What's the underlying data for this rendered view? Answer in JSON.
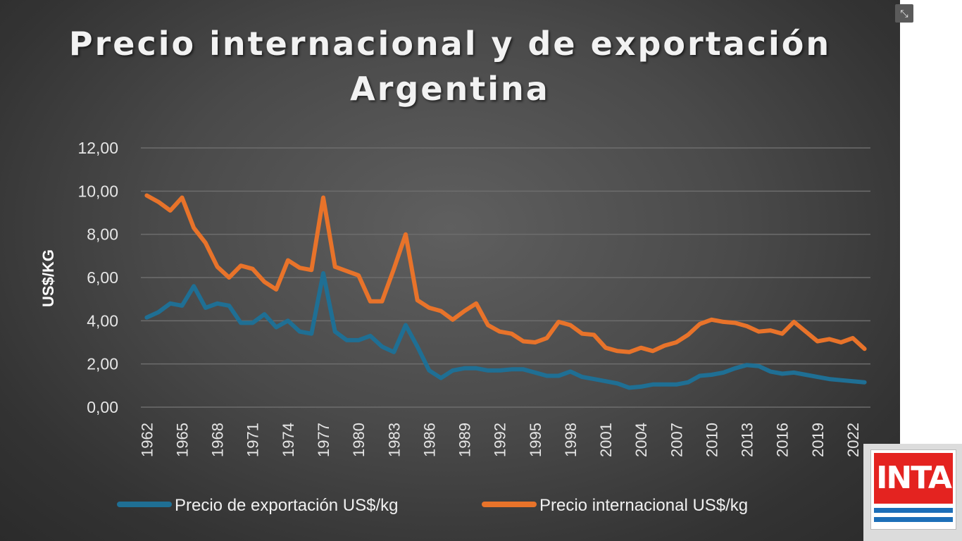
{
  "title_line1": "Precio internacional  y de exportación",
  "title_line2": "Argentina",
  "logo_text": "INTA",
  "fullscreen_icon": "collapse-icon",
  "chart_data": {
    "type": "line",
    "title": "Precio internacional  y de exportación Argentina",
    "ylabel": "US$/KG",
    "xlabel": "",
    "ylim": [
      0,
      12
    ],
    "yticks": [
      "0,00",
      "2,00",
      "4,00",
      "6,00",
      "8,00",
      "10,00",
      "12,00"
    ],
    "xticks": [
      "1962",
      "1965",
      "1968",
      "1971",
      "1974",
      "1977",
      "1980",
      "1983",
      "1986",
      "1989",
      "1992",
      "1995",
      "1998",
      "2001",
      "2004",
      "2007",
      "2010",
      "2013",
      "2016",
      "2019",
      "2022"
    ],
    "x_start": 1962,
    "x_end": 2023,
    "grid": true,
    "legend_position": "bottom",
    "series": [
      {
        "name": "Precio de exportación US$/kg",
        "color": "#1f6f94",
        "values": [
          4.15,
          4.4,
          4.8,
          4.7,
          5.6,
          4.6,
          4.8,
          4.7,
          3.9,
          3.9,
          4.3,
          3.7,
          4.0,
          3.5,
          3.4,
          6.2,
          3.5,
          3.1,
          3.1,
          3.3,
          2.8,
          2.55,
          3.8,
          2.8,
          1.7,
          1.35,
          1.7,
          1.8,
          1.8,
          1.7,
          1.7,
          1.75,
          1.75,
          1.6,
          1.45,
          1.45,
          1.65,
          1.4,
          1.3,
          1.2,
          1.1,
          0.9,
          0.95,
          1.05,
          1.05,
          1.05,
          1.15,
          1.45,
          1.5,
          1.6,
          1.8,
          1.95,
          1.9,
          1.65,
          1.55,
          1.6,
          1.5,
          1.4,
          1.3,
          1.25,
          1.2,
          1.15
        ]
      },
      {
        "name": "Precio internacional  US$/kg",
        "color": "#e8732a",
        "values": [
          9.8,
          9.5,
          9.1,
          9.7,
          8.3,
          7.6,
          6.5,
          6.0,
          6.55,
          6.4,
          5.8,
          5.45,
          6.8,
          6.45,
          6.35,
          9.7,
          6.5,
          6.3,
          6.1,
          4.9,
          4.9,
          6.4,
          8.0,
          4.95,
          4.6,
          4.45,
          4.05,
          4.45,
          4.8,
          3.8,
          3.5,
          3.4,
          3.05,
          3.0,
          3.2,
          3.95,
          3.8,
          3.4,
          3.35,
          2.75,
          2.6,
          2.55,
          2.75,
          2.6,
          2.85,
          3.0,
          3.35,
          3.85,
          4.05,
          3.95,
          3.9,
          3.75,
          3.5,
          3.55,
          3.4,
          3.95,
          3.5,
          3.05,
          3.15,
          3.0,
          3.2,
          2.7
        ]
      }
    ]
  }
}
